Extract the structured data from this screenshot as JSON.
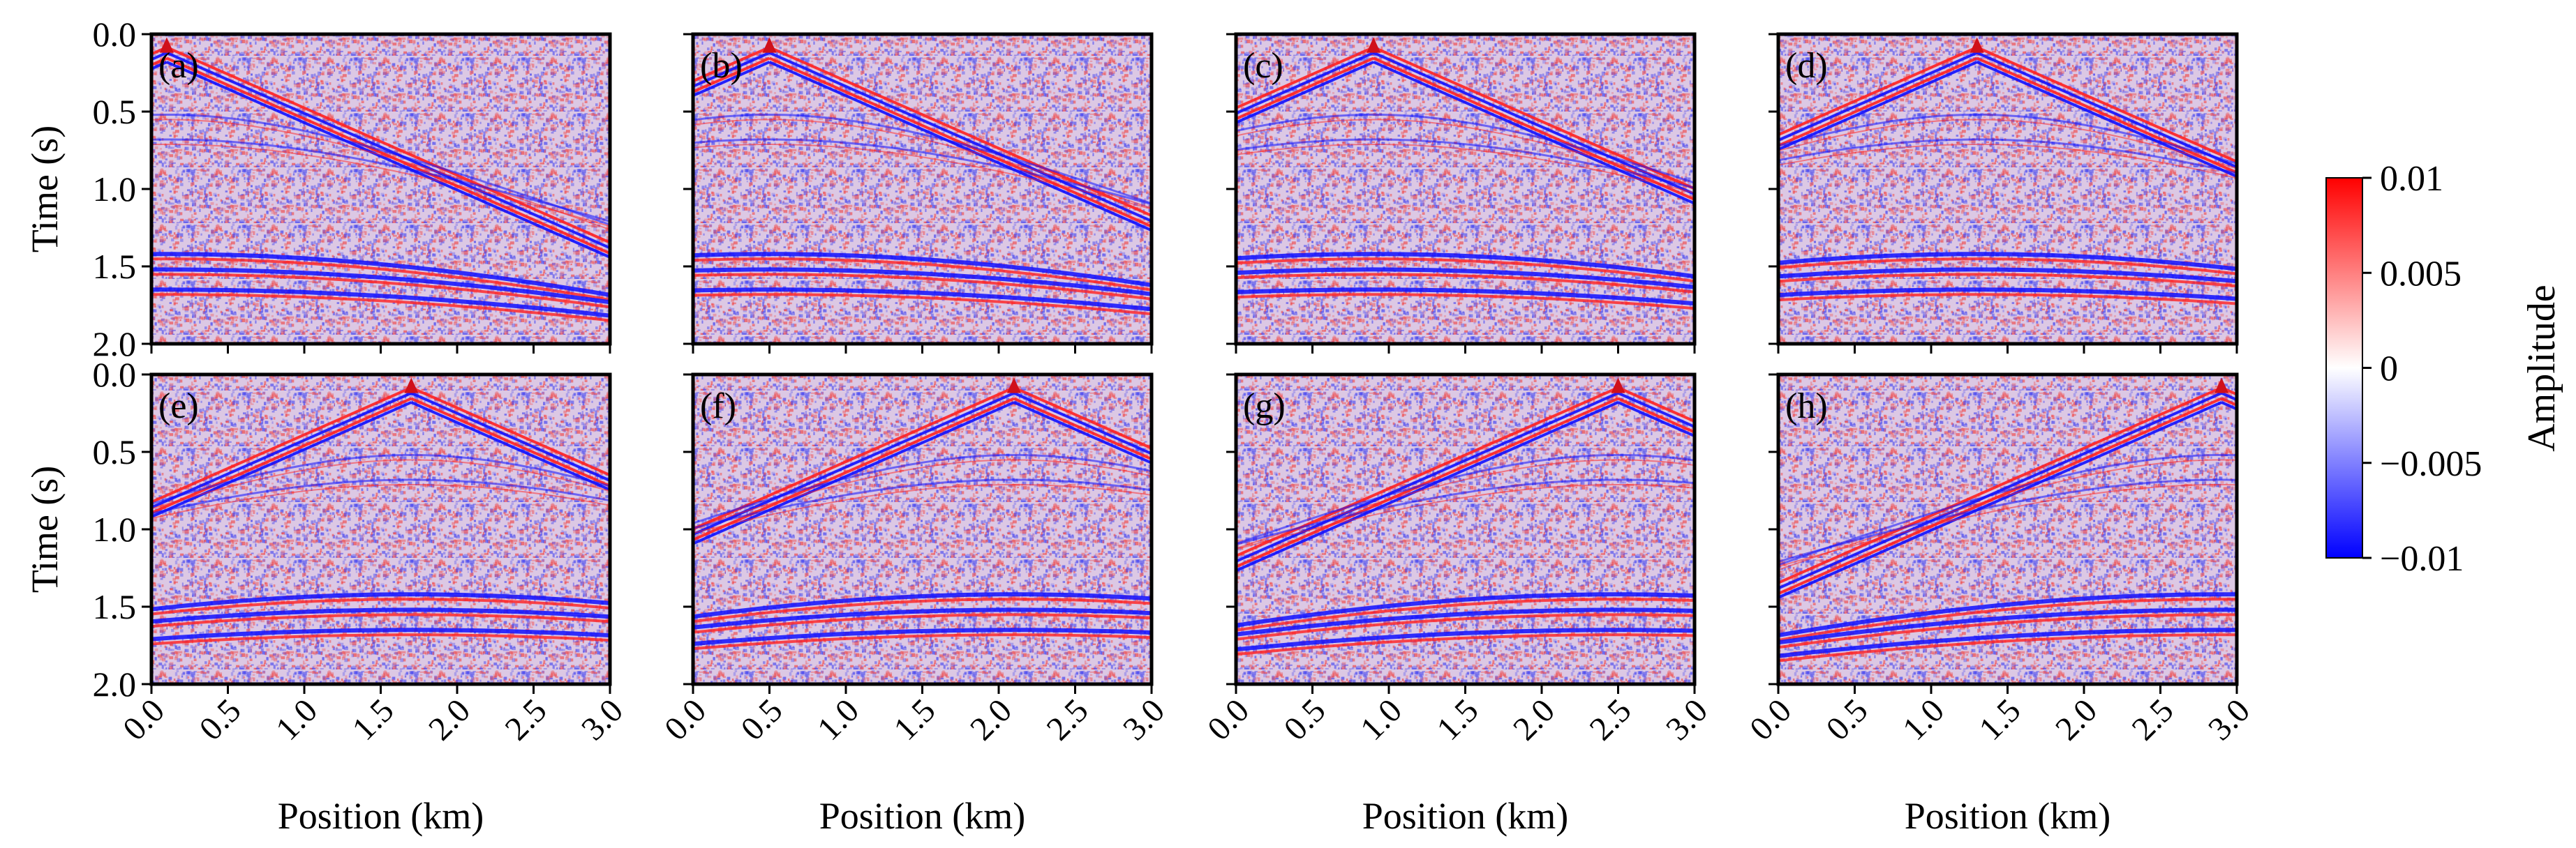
{
  "figure": {
    "description_text": "",
    "panels": [
      {
        "label": "(a)",
        "source_km": 0.1
      },
      {
        "label": "(b)",
        "source_km": 0.5
      },
      {
        "label": "(c)",
        "source_km": 0.9
      },
      {
        "label": "(d)",
        "source_km": 1.3
      },
      {
        "label": "(e)",
        "source_km": 1.7
      },
      {
        "label": "(f)",
        "source_km": 2.1
      },
      {
        "label": "(g)",
        "source_km": 2.5
      },
      {
        "label": "(h)",
        "source_km": 2.9
      }
    ]
  },
  "chart_data": {
    "type": "heatmap",
    "title": "",
    "xlabel": "Position (km)",
    "ylabel": "Time (s)",
    "xlim": [
      0.0,
      3.0
    ],
    "ylim": [
      0.0,
      2.0
    ],
    "y_inverted": true,
    "x_ticks": [
      "0.0",
      "0.5",
      "1.0",
      "1.5",
      "2.0",
      "2.5",
      "3.0"
    ],
    "y_ticks": [
      "0.0",
      "0.5",
      "1.0",
      "1.5",
      "2.0"
    ],
    "grid": false,
    "colorbar": {
      "label": "Amplitude",
      "range": [
        -0.01,
        0.01
      ],
      "ticks": [
        "0.01",
        "0.005",
        "0",
        "−0.005",
        "−0.01"
      ],
      "colors": {
        "low": "#0000ff",
        "mid": "#ffffff",
        "high": "#ff0000"
      }
    },
    "background_tint": "#dcc8e4",
    "direct_wave_velocity_km_s": 2.3,
    "events_note": "Simulated noisy shot gathers; each panel shows a direct-wave V with apex at the source position and several shallow reflection events near 1.4-1.9 s.",
    "reflections_s": [
      0.52,
      0.68,
      1.42,
      1.52,
      1.65
    ]
  }
}
